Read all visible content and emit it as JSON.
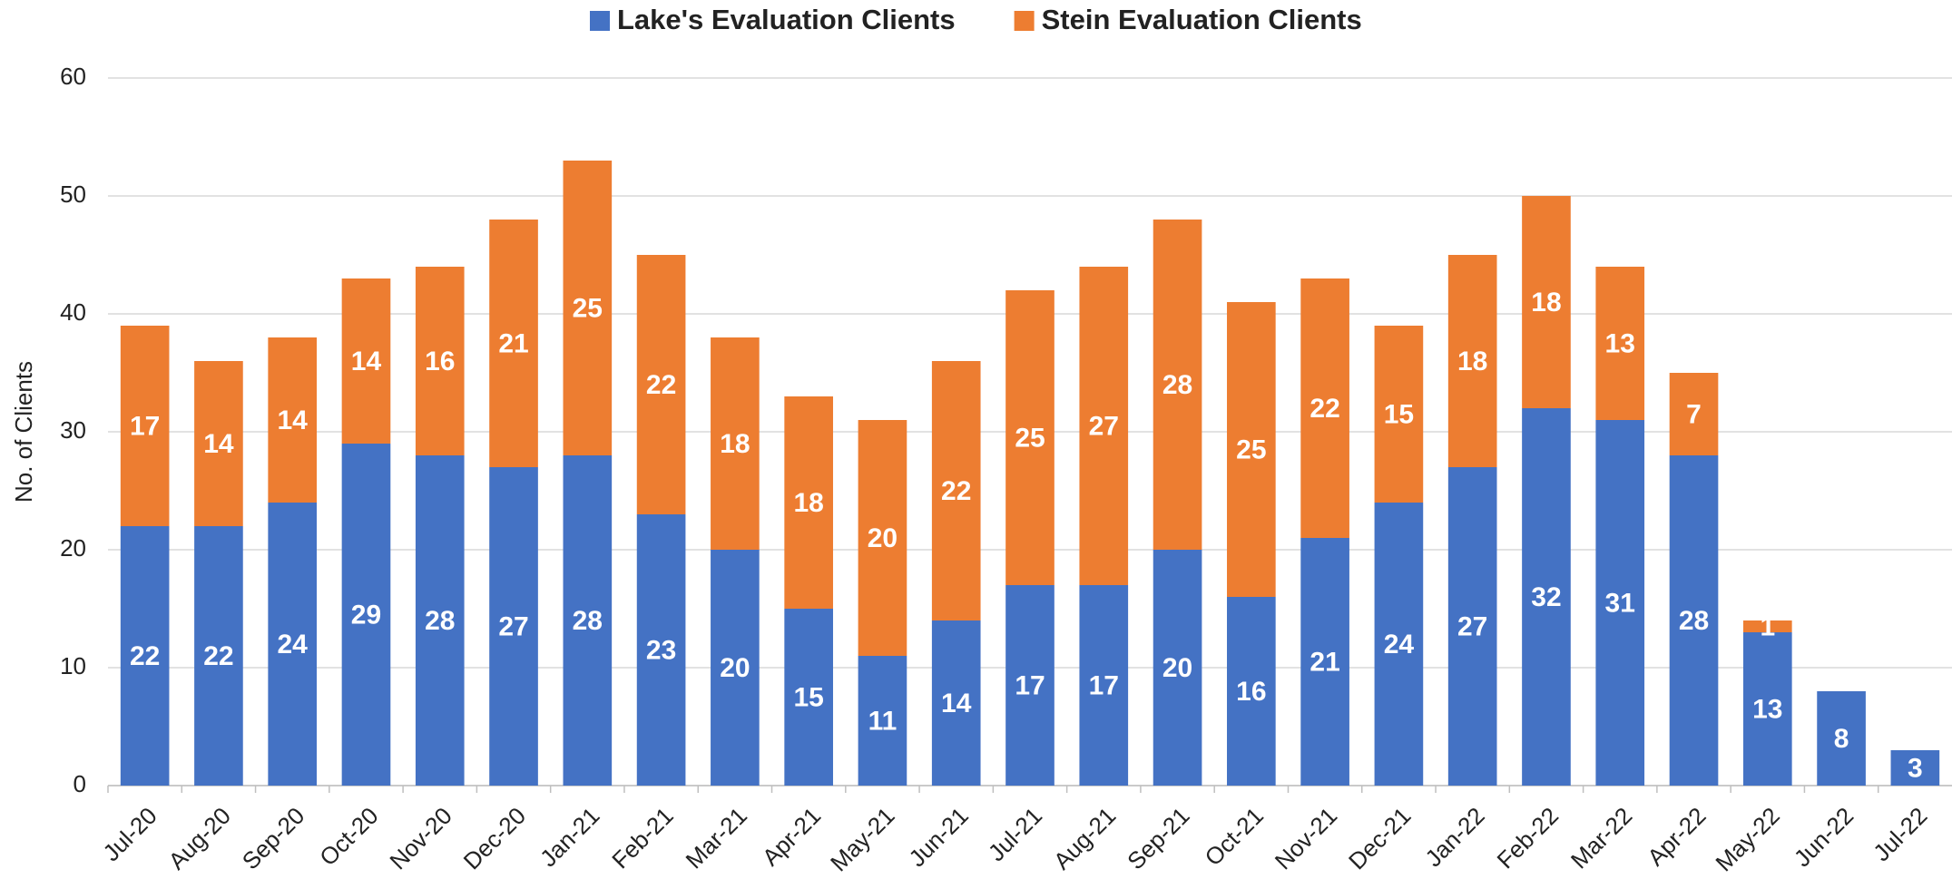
{
  "chart_data": {
    "type": "stacked_bar",
    "y_label": "No. of Clients",
    "categories": [
      "Jul-20",
      "Aug-20",
      "Sep-20",
      "Oct-20",
      "Nov-20",
      "Dec-20",
      "Jan-21",
      "Feb-21",
      "Mar-21",
      "Apr-21",
      "May-21",
      "Jun-21",
      "Jul-21",
      "Aug-21",
      "Sep-21",
      "Oct-21",
      "Nov-21",
      "Dec-21",
      "Jan-22",
      "Feb-22",
      "Mar-22",
      "Apr-22",
      "May-22",
      "Jun-22",
      "Jul-22"
    ],
    "series": [
      {
        "name": "Lake's Evaluation Clients",
        "color": "#4472c4",
        "values": [
          22,
          22,
          24,
          29,
          28,
          27,
          28,
          23,
          20,
          15,
          11,
          14,
          17,
          17,
          20,
          16,
          21,
          24,
          27,
          32,
          31,
          28,
          13,
          8,
          3
        ]
      },
      {
        "name": "Stein Evaluation Clients",
        "color": "#ed7d31",
        "values": [
          17,
          14,
          14,
          14,
          16,
          21,
          25,
          22,
          18,
          18,
          20,
          22,
          25,
          27,
          28,
          25,
          22,
          15,
          18,
          18,
          13,
          7,
          1,
          null,
          null
        ]
      }
    ],
    "ylim": [
      0,
      60
    ],
    "yticks": [
      0,
      10,
      20,
      30,
      40,
      50,
      60
    ],
    "grid": true,
    "legend": "top"
  }
}
